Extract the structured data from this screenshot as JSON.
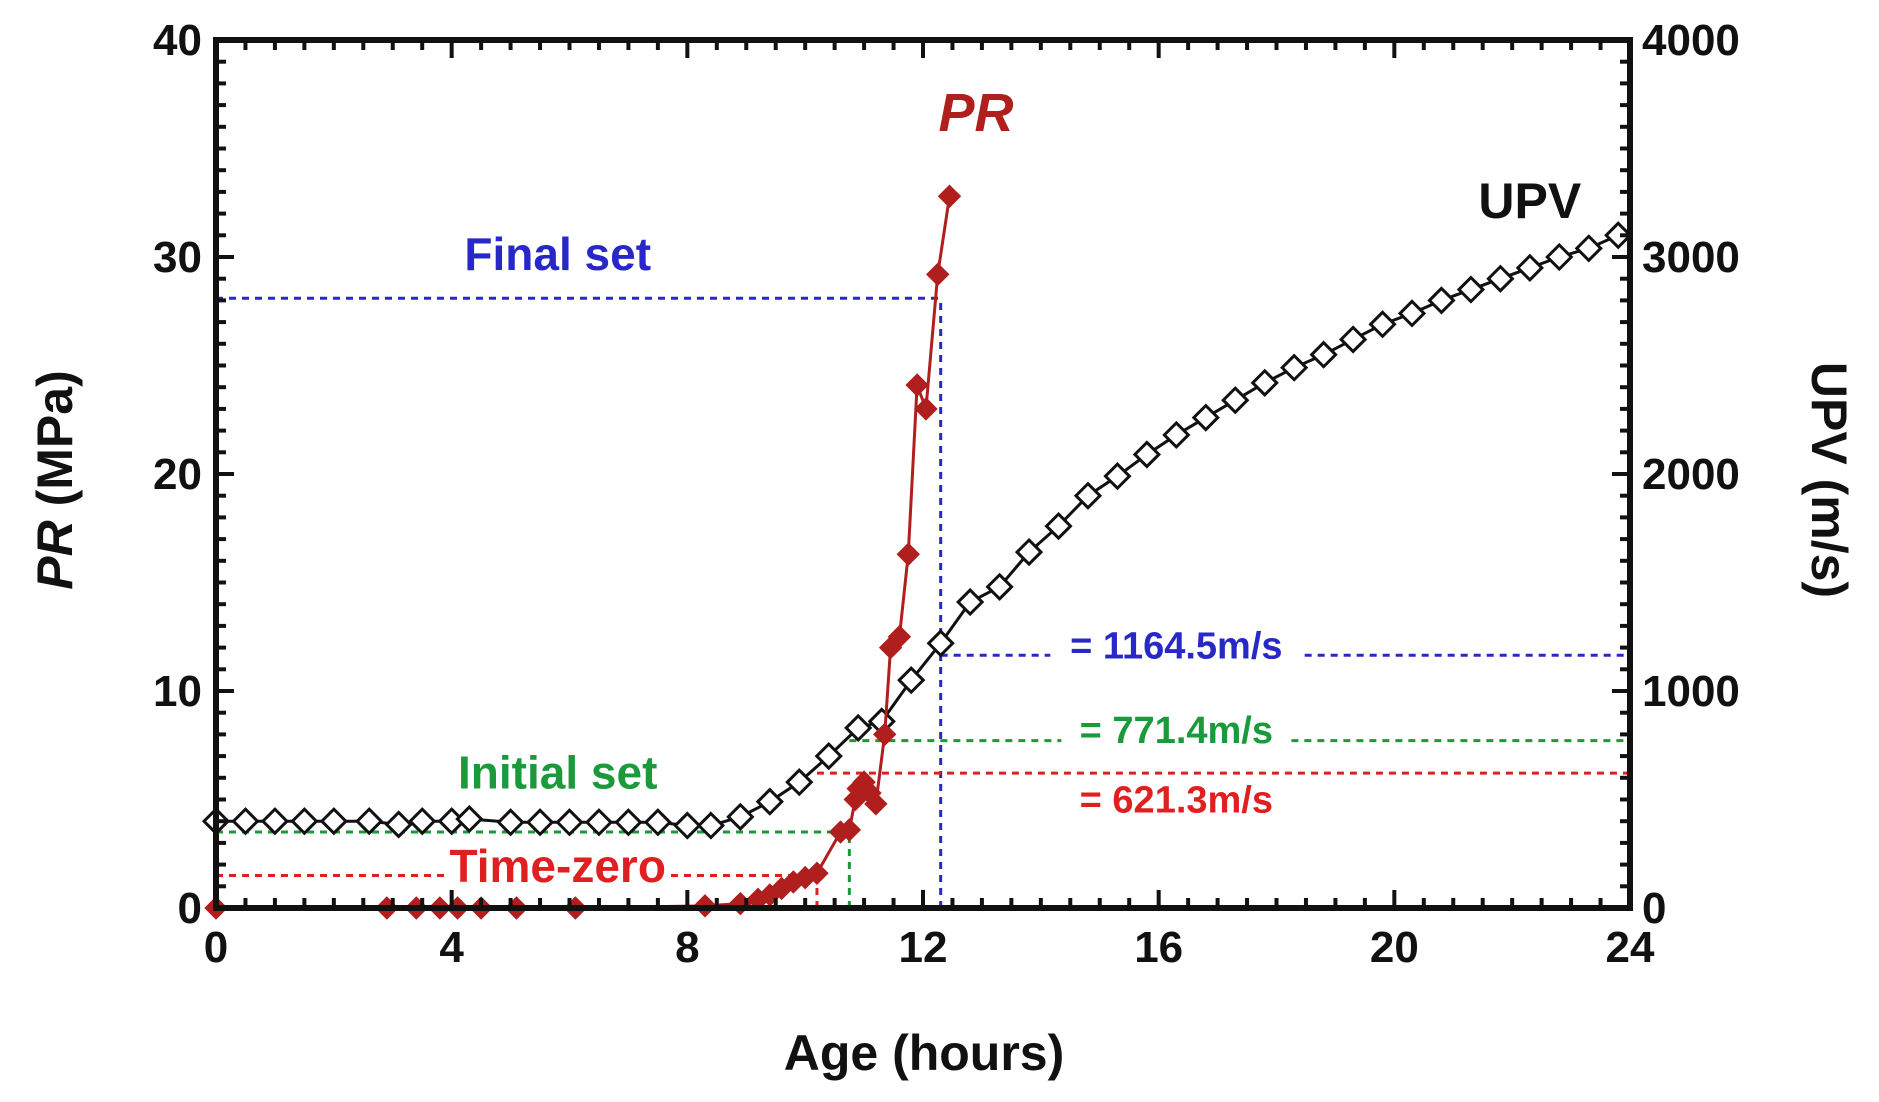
{
  "chart_data": {
    "type": "line",
    "xlabel": "Age (hours)",
    "ylabel_left": {
      "italic": "PR",
      "rest": " (MPa)"
    },
    "ylabel_right": "UPV (m/s)",
    "xlim": [
      0,
      24
    ],
    "ylim_left": [
      0,
      40
    ],
    "ylim_right": [
      0,
      4000
    ],
    "xticks": [
      0,
      4,
      8,
      12,
      16,
      20,
      24
    ],
    "yticks_left": [
      0,
      10,
      20,
      30,
      40
    ],
    "yticks_right": [
      0,
      1000,
      2000,
      3000,
      4000
    ],
    "grid": false,
    "series": [
      {
        "name": "PR",
        "axis": "left",
        "color": "#b01e1e",
        "marker": "filled-diamond",
        "points": [
          [
            0,
            0
          ],
          [
            2.9,
            0
          ],
          [
            3.4,
            0
          ],
          [
            3.8,
            0
          ],
          [
            4.1,
            0
          ],
          [
            4.5,
            0
          ],
          [
            5.1,
            0
          ],
          [
            6.1,
            0
          ],
          [
            8.3,
            0.1
          ],
          [
            8.9,
            0.2
          ],
          [
            9.2,
            0.4
          ],
          [
            9.4,
            0.6
          ],
          [
            9.6,
            0.9
          ],
          [
            9.8,
            1.2
          ],
          [
            10.0,
            1.4
          ],
          [
            10.2,
            1.6
          ],
          [
            10.6,
            3.5
          ],
          [
            10.75,
            3.6
          ],
          [
            10.85,
            5.0
          ],
          [
            10.9,
            5.5
          ],
          [
            11.0,
            5.8
          ],
          [
            11.1,
            5.3
          ],
          [
            11.2,
            4.8
          ],
          [
            11.35,
            8.0
          ],
          [
            11.45,
            12.0
          ],
          [
            11.6,
            12.5
          ],
          [
            11.75,
            16.3
          ],
          [
            11.9,
            24.1
          ],
          [
            12.05,
            23.0
          ],
          [
            12.25,
            29.2
          ],
          [
            12.45,
            32.8
          ]
        ]
      },
      {
        "name": "UPV",
        "axis": "right",
        "color": "#111111",
        "marker": "open-diamond",
        "points": [
          [
            0,
            400
          ],
          [
            0.5,
            400
          ],
          [
            1.0,
            400
          ],
          [
            1.5,
            400
          ],
          [
            2.0,
            400
          ],
          [
            2.6,
            400
          ],
          [
            3.1,
            385
          ],
          [
            3.5,
            400
          ],
          [
            4.0,
            400
          ],
          [
            4.3,
            410
          ],
          [
            5.0,
            395
          ],
          [
            5.5,
            395
          ],
          [
            6.0,
            395
          ],
          [
            6.5,
            395
          ],
          [
            7.0,
            395
          ],
          [
            7.5,
            395
          ],
          [
            8.0,
            380
          ],
          [
            8.4,
            380
          ],
          [
            8.9,
            420
          ],
          [
            9.4,
            490
          ],
          [
            9.9,
            580
          ],
          [
            10.4,
            700
          ],
          [
            10.9,
            830
          ],
          [
            11.3,
            860
          ],
          [
            11.8,
            1050
          ],
          [
            12.3,
            1220
          ],
          [
            12.8,
            1410
          ],
          [
            13.3,
            1480
          ],
          [
            13.8,
            1640
          ],
          [
            14.3,
            1760
          ],
          [
            14.8,
            1900
          ],
          [
            15.3,
            1990
          ],
          [
            15.8,
            2090
          ],
          [
            16.3,
            2180
          ],
          [
            16.8,
            2260
          ],
          [
            17.3,
            2340
          ],
          [
            17.8,
            2420
          ],
          [
            18.3,
            2490
          ],
          [
            18.8,
            2550
          ],
          [
            19.3,
            2620
          ],
          [
            19.8,
            2690
          ],
          [
            20.3,
            2740
          ],
          [
            20.8,
            2800
          ],
          [
            21.3,
            2850
          ],
          [
            21.8,
            2900
          ],
          [
            22.3,
            2950
          ],
          [
            22.8,
            3000
          ],
          [
            23.3,
            3040
          ],
          [
            23.8,
            3100
          ]
        ]
      }
    ],
    "annotations": {
      "pr_label": {
        "text": "PR",
        "x": 12.9,
        "y": 35.8,
        "color": "#b01e1e"
      },
      "upv_label": {
        "text": "UPV",
        "x": 22.3,
        "y": 31.8,
        "color": "#111111"
      },
      "final_set": {
        "text": "Final set",
        "x": 5.8,
        "y": 29.4,
        "color": "#2828c8"
      },
      "initial_set": {
        "text": "Initial set",
        "x": 5.8,
        "y": 5.5,
        "color": "#1a9a3a"
      },
      "time_zero": {
        "text": "Time-zero",
        "x": 5.8,
        "y": 1.2,
        "color": "#e02020"
      },
      "upv_final": {
        "text": "= 1164.5m/s",
        "x": 16.3,
        "y": 1150,
        "color": "#2828c8"
      },
      "upv_initial": {
        "text": "= 771.4m/s",
        "x": 16.3,
        "y": 760,
        "color": "#1a9a3a"
      },
      "upv_timezero": {
        "text": "= 621.3m/s",
        "x": 16.3,
        "y": 440,
        "color": "#e02020"
      }
    },
    "reference_lines": {
      "final_set": {
        "time": 12.3,
        "pr": 28.1,
        "upv": 1164.5,
        "color": "#2828c8"
      },
      "initial_set": {
        "time": 10.75,
        "pr": 3.5,
        "upv": 771.4,
        "color": "#1a9a3a"
      },
      "time_zero": {
        "time": 10.2,
        "pr": 1.5,
        "upv": 621.3,
        "color": "#e02020"
      }
    }
  }
}
